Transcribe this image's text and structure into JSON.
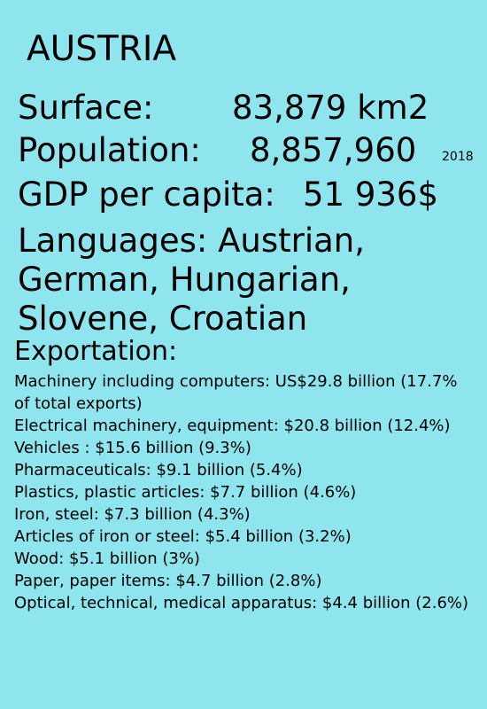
{
  "country": "AUSTRIA",
  "surface": {
    "label": "Surface:",
    "value": "83,879 km2"
  },
  "population": {
    "label": "Population:",
    "value": "8,857,960",
    "year": "2018"
  },
  "gdp": {
    "label": "GDP per capita:",
    "value": "51 936$"
  },
  "languages": "Languages: Austrian, German, Hungarian, Slovene, Croatian",
  "exportation": {
    "heading": "Exportation:",
    "items": [
      "Machinery including computers: US$29.8 billion (17.7% of total exports)",
      "Electrical machinery, equipment: $20.8 billion (12.4%)",
      "Vehicles : $15.6 billion (9.3%)",
      "Pharmaceuticals: $9.1 billion (5.4%)",
      "Plastics, plastic articles: $7.7 billion (4.6%)",
      "Iron, steel: $7.3 billion (4.3%)",
      "Articles of iron or steel: $5.4 billion (3.2%)",
      "Wood: $5.1 billion (3%)",
      "Paper, paper items: $4.7 billion (2.8%)",
      "Optical, technical, medical apparatus: $4.4 billion (2.6%)"
    ]
  }
}
